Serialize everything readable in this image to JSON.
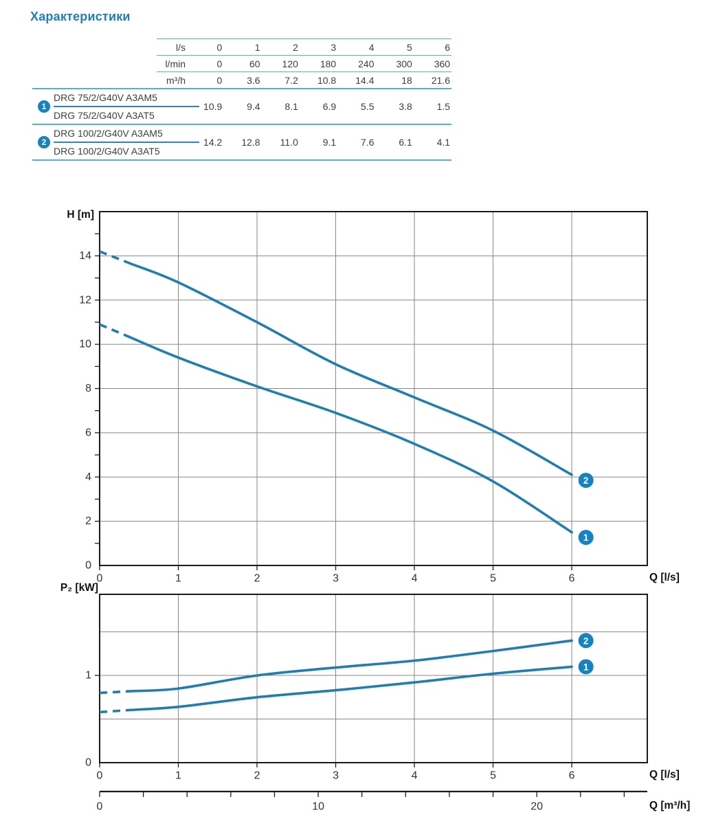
{
  "title": "Характеристики",
  "colors": {
    "accent": "#1d7fc0",
    "curve": "#1c7eb5",
    "badge": "#1583c3",
    "grid": "#878787",
    "axis": "#1a1a1a",
    "rule_teal": "#55b2c8",
    "rule_blue": "#2e86c1",
    "text": "#3d3d3d",
    "tick_label": "#333333"
  },
  "table": {
    "header_rows": [
      {
        "label": "l/s",
        "values": [
          "0",
          "1",
          "2",
          "3",
          "4",
          "5",
          "6"
        ]
      },
      {
        "label": "l/min",
        "values": [
          "0",
          "60",
          "120",
          "180",
          "240",
          "300",
          "360"
        ]
      },
      {
        "label": "m³/h",
        "values": [
          "0",
          "3.6",
          "7.2",
          "10.8",
          "14.4",
          "18",
          "21.6"
        ]
      }
    ],
    "groups": [
      {
        "badge": "1",
        "models": [
          "DRG 75/2/G40V A3AM5",
          "DRG 75/2/G40V A3AT5"
        ],
        "values": [
          "10.9",
          "9.4",
          "8.1",
          "6.9",
          "5.5",
          "3.8",
          "1.5"
        ]
      },
      {
        "badge": "2",
        "models": [
          "DRG 100/2/G40V A3AM5",
          "DRG 100/2/G40V A3AT5"
        ],
        "values": [
          "14.2",
          "12.8",
          "11.0",
          "9.1",
          "7.6",
          "6.1",
          "4.1"
        ]
      }
    ]
  },
  "chart_data": [
    {
      "type": "line",
      "title": "Head curves",
      "ylabel": "H [m]",
      "xlabel": "Q [l/s]",
      "xlim": [
        0,
        6.96
      ],
      "ylim": [
        0,
        16
      ],
      "grid": true,
      "x": [
        0,
        1,
        2,
        3,
        4,
        5,
        6
      ],
      "x_gridlines": [
        1,
        2,
        3,
        4,
        5,
        6
      ],
      "x_tick_labels": [
        0,
        1,
        2,
        3,
        4,
        5,
        6
      ],
      "y_gridlines": [
        2,
        4,
        6,
        8,
        10,
        12,
        14
      ],
      "y_major_labels": [
        0,
        2,
        4,
        6,
        8,
        10,
        12,
        14
      ],
      "y_tick_marks": [
        1,
        2,
        3,
        4,
        5,
        6,
        7,
        8,
        9,
        10,
        11,
        12,
        13,
        14,
        15
      ],
      "dashed_until": 0.4,
      "series": [
        {
          "name": "1",
          "values": [
            10.9,
            9.4,
            8.1,
            6.9,
            5.5,
            3.8,
            1.5
          ],
          "badge": {
            "x": 6.18,
            "y": 1.27
          }
        },
        {
          "name": "2",
          "values": [
            14.2,
            12.8,
            11.0,
            9.1,
            7.6,
            6.1,
            4.1
          ],
          "badge": {
            "x": 6.18,
            "y": 3.85
          }
        }
      ]
    },
    {
      "type": "line",
      "title": "Shaft power curves",
      "ylabel": "P₂ [kW]",
      "xlabel": "Q [l/s]",
      "xlim": [
        0,
        6.96
      ],
      "ylim": [
        0,
        1.93
      ],
      "grid": true,
      "x": [
        0,
        1,
        2,
        3,
        4,
        5,
        6
      ],
      "x_gridlines": [
        1,
        2,
        3,
        4,
        5,
        6
      ],
      "x_tick_labels": [
        0,
        1,
        2,
        3,
        4,
        5,
        6
      ],
      "y_gridlines": [
        0.5,
        1,
        1.5
      ],
      "y_major_labels": [
        0,
        1
      ],
      "y_tick_marks": [
        1
      ],
      "dashed_until": 0.4,
      "series": [
        {
          "name": "1",
          "values": [
            0.58,
            0.64,
            0.75,
            0.83,
            0.92,
            1.02,
            1.1
          ],
          "badge": {
            "x": 6.18,
            "y": 1.1
          }
        },
        {
          "name": "2",
          "values": [
            0.8,
            0.85,
            1.0,
            1.09,
            1.17,
            1.28,
            1.4
          ],
          "badge": {
            "x": 6.18,
            "y": 1.4
          }
        }
      ],
      "secondary_axis": {
        "label": "Q [m³/h]",
        "factor": 3.6,
        "tick_step": 2,
        "tick_max": 24,
        "labeled_ticks": [
          {
            "value": 0,
            "label": "0"
          },
          {
            "value": 10,
            "label": "10"
          },
          {
            "value": 20,
            "label": "20"
          }
        ]
      }
    }
  ]
}
